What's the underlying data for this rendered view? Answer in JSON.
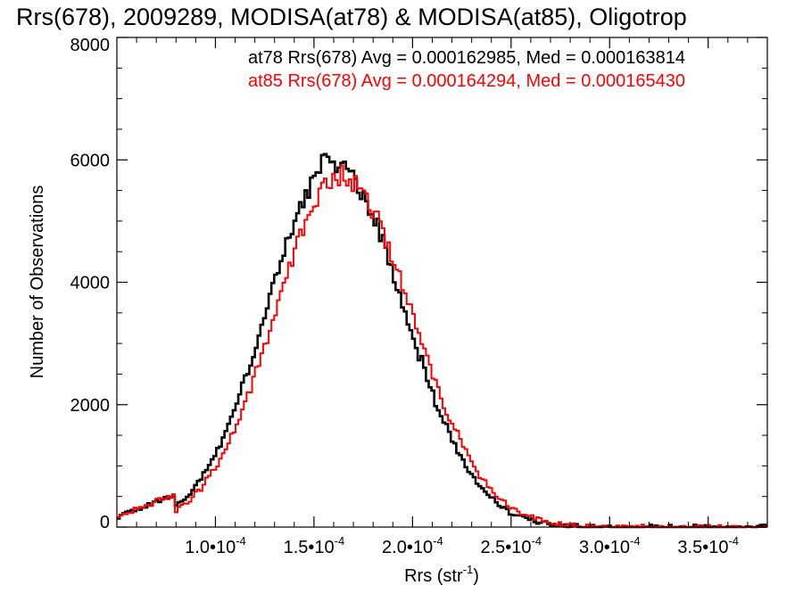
{
  "chart_data": {
    "type": "line",
    "title": "Rrs(678), 2009289, MODISA(at78) & MODISA(at85), Oligotrop",
    "xlabel": "Rrs (str",
    "xlabel_sup": "-1",
    "xlabel_end": ")",
    "ylabel": "Number of Observations",
    "xlim": [
      5e-05,
      0.00038
    ],
    "ylim": [
      0,
      8000
    ],
    "x_ticks": [
      {
        "value": 0.0001,
        "mantissa": "1.0",
        "sep": "•",
        "base": "10",
        "exp": "-4"
      },
      {
        "value": 0.00015,
        "mantissa": "1.5",
        "sep": "•",
        "base": "10",
        "exp": "-4"
      },
      {
        "value": 0.0002,
        "mantissa": "2.0",
        "sep": "•",
        "base": "10",
        "exp": "-4"
      },
      {
        "value": 0.00025,
        "mantissa": "2.5",
        "sep": "•",
        "base": "10",
        "exp": "-4"
      },
      {
        "value": 0.0003,
        "mantissa": "3.0",
        "sep": "•",
        "base": "10",
        "exp": "-4"
      },
      {
        "value": 0.00035,
        "mantissa": "3.5",
        "sep": "•",
        "base": "10",
        "exp": "-4"
      }
    ],
    "y_ticks": [
      0,
      2000,
      4000,
      6000,
      8000
    ],
    "x_minor_step": 1e-05,
    "y_minor_step": 500,
    "grid": false,
    "series": [
      {
        "name": "at78",
        "color": "#000000",
        "stat_text": "at78 Rrs(678) Avg = 0.000162985, Med = 0.000163814",
        "avg": 0.000162985,
        "med": 0.000163814,
        "peak_x": 0.00016,
        "peak_y": 5950,
        "sigma_left": 3.35e-05,
        "sigma_right": 3.55e-05
      },
      {
        "name": "at85",
        "color": "#ff0000",
        "stat_text": "at85 Rrs(678) Avg = 0.000164294, Med = 0.000165430",
        "avg": 0.000164294,
        "med": 0.00016543,
        "peak_x": 0.000164,
        "peak_y": 5720,
        "sigma_left": 3.4e-05,
        "sigma_right": 3.6e-05
      }
    ],
    "bin_width": 1.4e-06,
    "base_level": 160
  }
}
